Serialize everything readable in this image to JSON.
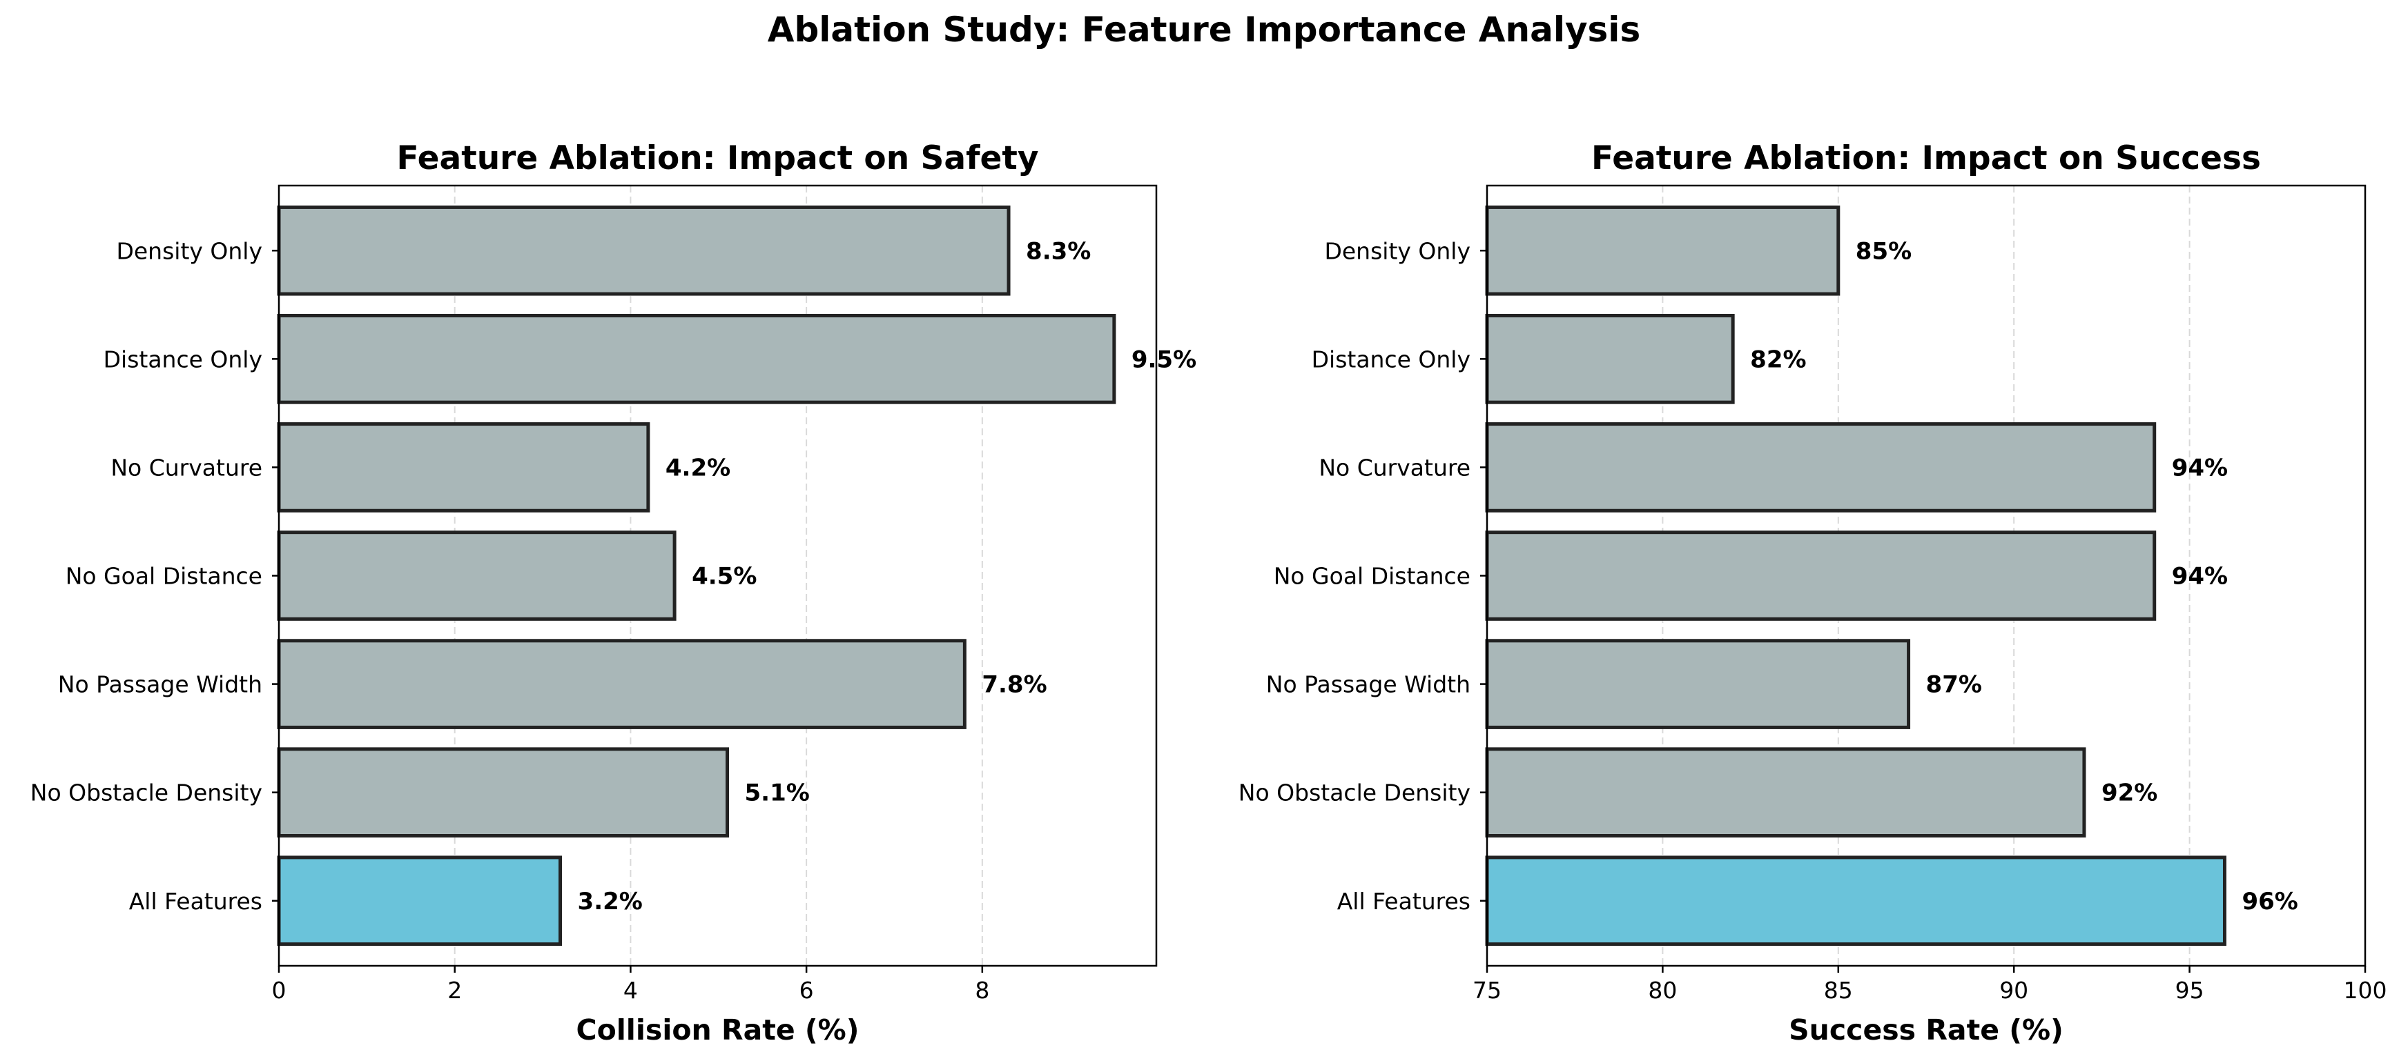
{
  "figure": {
    "suptitle": "Ablation Study: Feature Importance Analysis"
  },
  "colors": {
    "highlight": "#6AC3DA",
    "default": "#A9B7B8",
    "edge": "#222222",
    "grid": "#d9d9d9"
  },
  "chart_data": [
    {
      "type": "bar",
      "orientation": "horizontal",
      "title": "Feature Ablation: Impact on Safety",
      "xlabel": "Collision Rate (%)",
      "ylabel": "",
      "categories": [
        "All Features",
        "No Obstacle Density",
        "No Passage Width",
        "No Goal Distance",
        "No Curvature",
        "Distance Only",
        "Density Only"
      ],
      "values": [
        3.2,
        5.1,
        7.8,
        4.5,
        4.2,
        9.5,
        8.3
      ],
      "value_labels": [
        "3.2%",
        "5.1%",
        "7.8%",
        "4.5%",
        "4.2%",
        "9.5%",
        "8.3%"
      ],
      "highlight_index": 0,
      "xlim": [
        0,
        9.98
      ],
      "xticks": [
        0,
        2,
        4,
        6,
        8
      ],
      "xtick_labels": [
        "0",
        "2",
        "4",
        "6",
        "8"
      ],
      "grid": "x-dashed"
    },
    {
      "type": "bar",
      "orientation": "horizontal",
      "title": "Feature Ablation: Impact on Success",
      "xlabel": "Success Rate (%)",
      "ylabel": "",
      "categories": [
        "All Features",
        "No Obstacle Density",
        "No Passage Width",
        "No Goal Distance",
        "No Curvature",
        "Distance Only",
        "Density Only"
      ],
      "values": [
        96,
        92,
        87,
        94,
        94,
        82,
        85
      ],
      "value_labels": [
        "96%",
        "92%",
        "87%",
        "94%",
        "94%",
        "82%",
        "85%"
      ],
      "highlight_index": 0,
      "xlim": [
        75,
        100
      ],
      "xticks": [
        75,
        80,
        85,
        90,
        95,
        100
      ],
      "xtick_labels": [
        "75",
        "80",
        "85",
        "90",
        "95",
        "100"
      ],
      "grid": "x-dashed"
    }
  ]
}
